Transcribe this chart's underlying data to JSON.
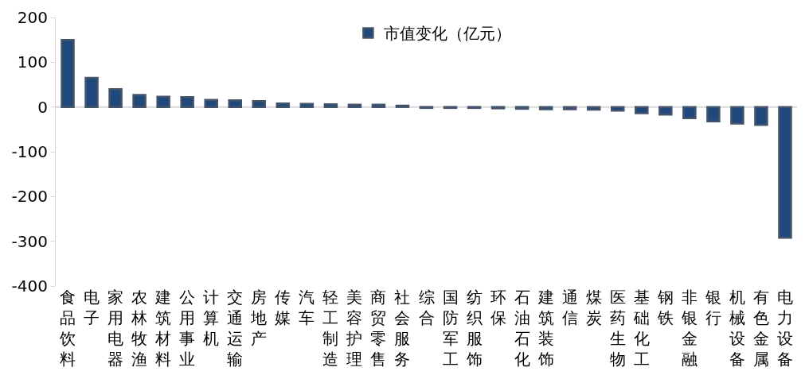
{
  "chart_data": {
    "type": "bar",
    "categories": [
      "食品饮料",
      "电子",
      "家用电器",
      "农林牧渔",
      "建筑材料",
      "公用事业",
      "计算机",
      "交通运输",
      "房地产",
      "传媒",
      "汽车",
      "轻工制造",
      "美容护理",
      "商贸零售",
      "社会服务",
      "综合",
      "国防军工",
      "纺织服饰",
      "环保",
      "石油石化",
      "建筑装饰",
      "通信",
      "煤炭",
      "医药生物",
      "基础化工",
      "钢铁",
      "非银金融",
      "银行",
      "机械设备",
      "有色金属",
      "电力设备"
    ],
    "series": [
      {
        "name": "市值变化（亿元）",
        "color": "#1f497d",
        "values": [
          150,
          65,
          40,
          27,
          23,
          22,
          16,
          15,
          13,
          8,
          7,
          6,
          5,
          5,
          3,
          -2,
          -2,
          -2,
          -3,
          -4,
          -5,
          -5,
          -6,
          -8,
          -14,
          -17,
          -25,
          -32,
          -37,
          -40,
          -292
        ]
      }
    ],
    "ylim": [
      -400,
      200
    ],
    "yticks": [
      -400,
      -300,
      -200,
      -100,
      0,
      100,
      200
    ],
    "grid": false,
    "legend": "top",
    "ref_lines": [
      {
        "axis": "y",
        "value": 0,
        "color": "#d9d9d9"
      }
    ]
  }
}
